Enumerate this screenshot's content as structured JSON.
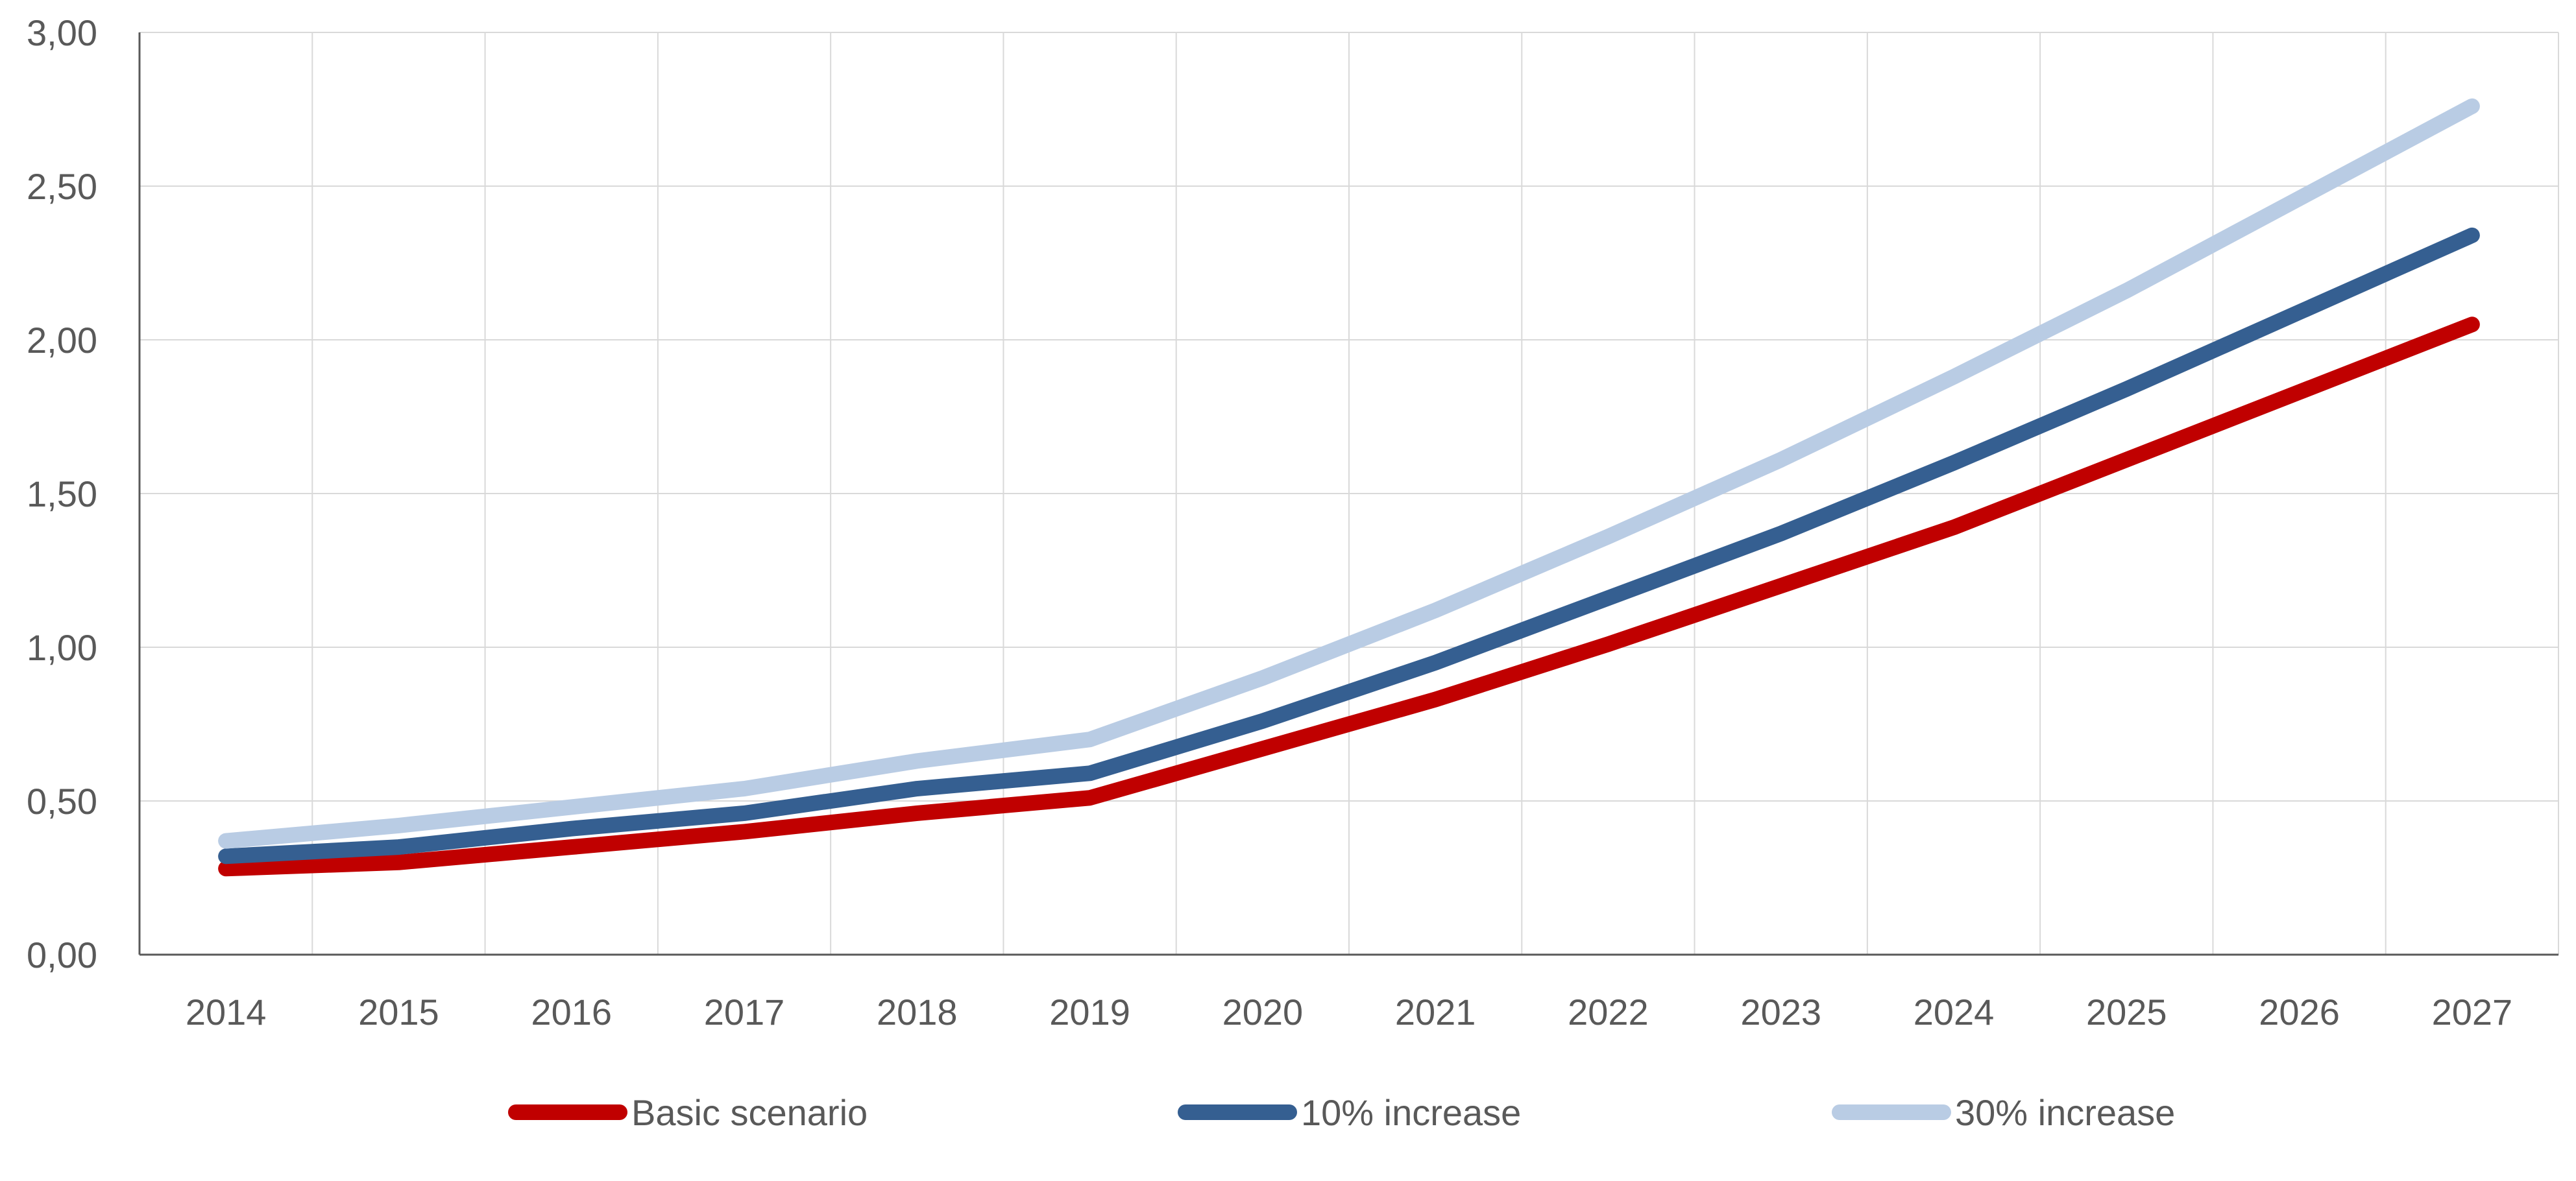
{
  "chart_data": {
    "type": "line",
    "title": "",
    "xlabel": "",
    "ylabel": "",
    "categories": [
      "2014",
      "2015",
      "2016",
      "2017",
      "2018",
      "2019",
      "2020",
      "2021",
      "2022",
      "2023",
      "2024",
      "2025",
      "2026",
      "2027"
    ],
    "ylim": [
      0,
      3
    ],
    "yticks": [
      0,
      0.5,
      1,
      1.5,
      2,
      2.5,
      3
    ],
    "ytick_labels": [
      "0,00",
      "0,50",
      "1,00",
      "1,50",
      "2,00",
      "2,50",
      "3,00"
    ],
    "grid": true,
    "legend_position": "bottom",
    "series": [
      {
        "name": "Basic scenario",
        "color": "#C00000",
        "values": [
          0.28,
          0.3,
          0.35,
          0.4,
          0.46,
          0.51,
          0.67,
          0.83,
          1.01,
          1.2,
          1.39,
          1.61,
          1.83,
          2.05
        ]
      },
      {
        "name": "10% increase",
        "color": "#355F91",
        "values": [
          0.32,
          0.35,
          0.41,
          0.46,
          0.54,
          0.59,
          0.76,
          0.95,
          1.16,
          1.37,
          1.6,
          1.84,
          2.09,
          2.34
        ]
      },
      {
        "name": "30% increase",
        "color": "#B9CCE4",
        "values": [
          0.37,
          0.42,
          0.48,
          0.54,
          0.63,
          0.7,
          0.9,
          1.12,
          1.36,
          1.61,
          1.88,
          2.16,
          2.46,
          2.76
        ]
      }
    ]
  }
}
